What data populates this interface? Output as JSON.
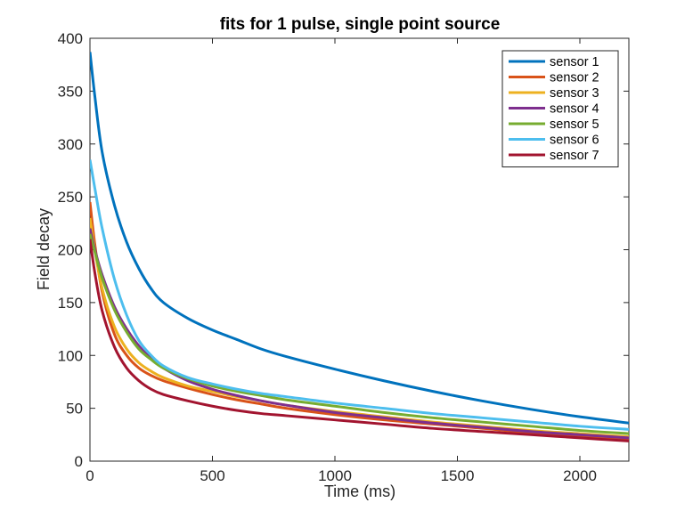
{
  "chart_data": {
    "type": "line",
    "title": "fits for 1 pulse, single point source",
    "xlabel": "Time (ms)",
    "ylabel": "Field decay",
    "xlim": [
      0,
      2200
    ],
    "ylim": [
      0,
      400
    ],
    "xticks": [
      0,
      500,
      1000,
      1500,
      2000
    ],
    "yticks": [
      0,
      50,
      100,
      150,
      200,
      250,
      300,
      350,
      400
    ],
    "xtick_labels": [
      "0",
      "500",
      "1000",
      "1500",
      "2000"
    ],
    "ytick_labels": [
      "0",
      "50",
      "100",
      "150",
      "200",
      "250",
      "300",
      "350",
      "400"
    ],
    "grid": false,
    "legend_position": "top-right",
    "x": [
      0,
      20,
      50,
      100,
      150,
      200,
      250,
      300,
      400,
      500,
      600,
      700,
      800,
      1000,
      1200,
      1400,
      1600,
      1800,
      2000,
      2200
    ],
    "series": [
      {
        "name": "sensor 1",
        "color": "#0072BD",
        "values": [
          387,
          345,
          292,
          242,
          207,
          182,
          163,
          150,
          135,
          124,
          115,
          106,
          99,
          87,
          76,
          66,
          57,
          49,
          42,
          36
        ]
      },
      {
        "name": "sensor 2",
        "color": "#D95319",
        "values": [
          245,
          205,
          160,
          120,
          100,
          88,
          81,
          76,
          69,
          63,
          58,
          54,
          50,
          44,
          39,
          35,
          31,
          27,
          24,
          21
        ]
      },
      {
        "name": "sensor 3",
        "color": "#EDB120",
        "values": [
          230,
          200,
          163,
          127,
          106,
          93,
          85,
          79,
          71,
          66,
          61,
          57,
          53,
          47,
          42,
          37,
          33,
          29,
          26,
          23
        ]
      },
      {
        "name": "sensor 4",
        "color": "#7E2F8E",
        "values": [
          220,
          200,
          176,
          146,
          125,
          109,
          97,
          88,
          76,
          68,
          62,
          57,
          53,
          46,
          41,
          36,
          32,
          28,
          25,
          22
        ]
      },
      {
        "name": "sensor 5",
        "color": "#77AC30",
        "values": [
          215,
          198,
          173,
          143,
          122,
          106,
          96,
          88,
          78,
          71,
          66,
          62,
          58,
          52,
          46,
          41,
          37,
          33,
          29,
          26
        ]
      },
      {
        "name": "sensor 6",
        "color": "#4DBEEE",
        "values": [
          285,
          258,
          220,
          172,
          138,
          114,
          100,
          90,
          79,
          73,
          68,
          64,
          61,
          55,
          50,
          45,
          41,
          37,
          33,
          30
        ]
      },
      {
        "name": "sensor 7",
        "color": "#A2142F",
        "values": [
          210,
          178,
          142,
          108,
          88,
          76,
          68,
          63,
          57,
          52,
          48,
          45,
          43,
          39,
          35,
          31,
          28,
          25,
          22,
          19
        ]
      }
    ]
  }
}
